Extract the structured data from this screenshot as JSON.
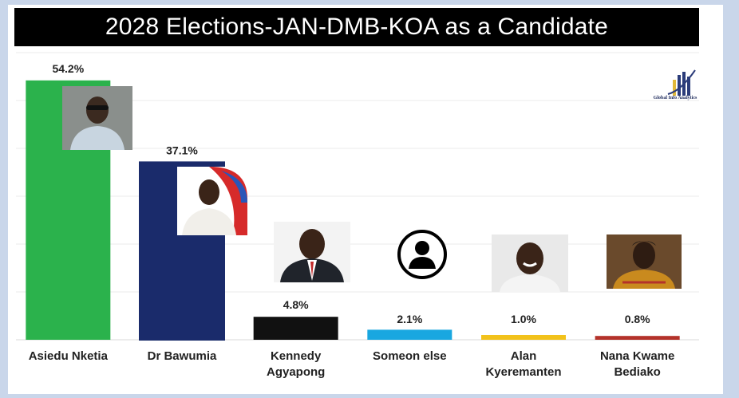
{
  "chart_data": {
    "type": "bar",
    "title": "2028 Elections-JAN-DMB-KOA as a Candidate",
    "categories": [
      "Asiedu Nketia",
      "Dr Bawumia",
      "Kennedy Agyapong",
      "Someon else",
      "Alan Kyeremanten",
      "Nana Kwame Bediako"
    ],
    "category_lines": [
      [
        "Asiedu Nketia"
      ],
      [
        "Dr Bawumia"
      ],
      [
        "Kennedy",
        "Agyapong"
      ],
      [
        "Someon else"
      ],
      [
        "Alan",
        "Kyeremanten"
      ],
      [
        "Nana Kwame",
        "Bediako"
      ]
    ],
    "values": [
      54.2,
      37.1,
      4.8,
      2.1,
      1.0,
      0.8
    ],
    "data_labels": [
      "54.2%",
      "37.1%",
      "4.8%",
      "2.1%",
      "1.0%",
      "0.8%"
    ],
    "colors": [
      "#2bb24c",
      "#1a2b6b",
      "#111111",
      "#19a7e0",
      "#f2c21b",
      "#b4322a"
    ],
    "ylim": [
      0,
      60
    ],
    "grid": true,
    "legend": "none"
  },
  "logo": {
    "text": "Global Info Analytics"
  }
}
